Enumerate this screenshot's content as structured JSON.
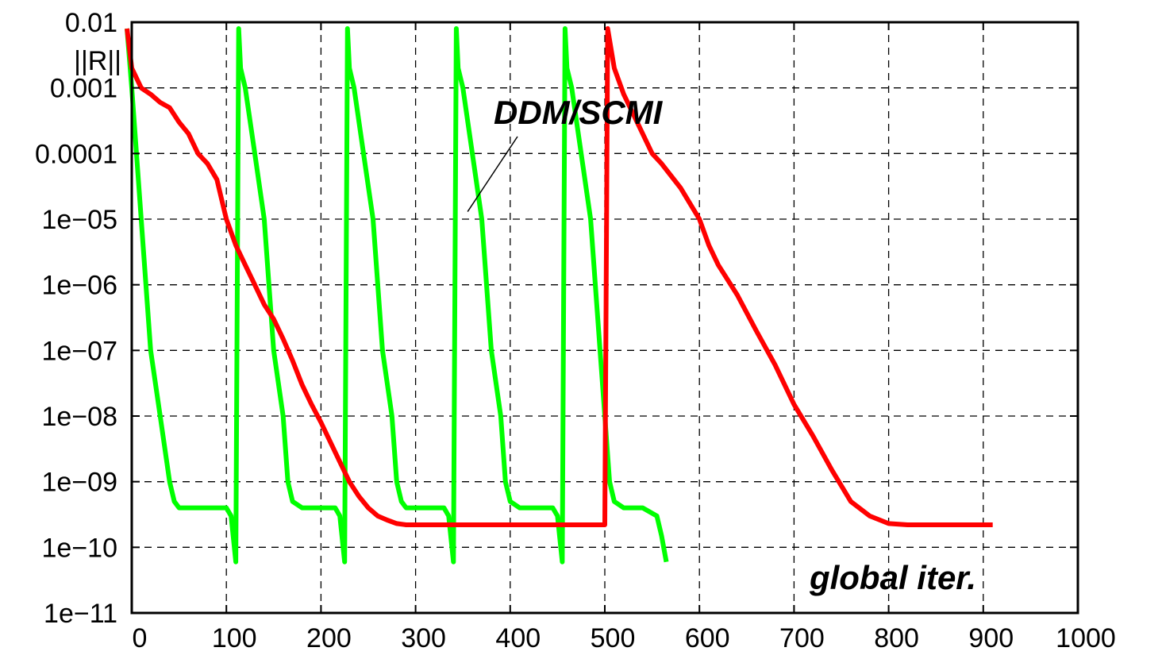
{
  "chart_data": {
    "type": "line",
    "title": "",
    "xlabel": "global iter.",
    "ylabel": "||R||",
    "xlim": [
      0,
      1000
    ],
    "ylim": [
      1e-11,
      0.01
    ],
    "yscale": "log",
    "grid": true,
    "x_ticks": [
      {
        "value": 0,
        "label": "0"
      },
      {
        "value": 100,
        "label": "100"
      },
      {
        "value": 200,
        "label": "200"
      },
      {
        "value": 300,
        "label": "300"
      },
      {
        "value": 400,
        "label": "400"
      },
      {
        "value": 500,
        "label": "500"
      },
      {
        "value": 600,
        "label": "600"
      },
      {
        "value": 700,
        "label": "700"
      },
      {
        "value": 800,
        "label": "800"
      },
      {
        "value": 900,
        "label": "900"
      },
      {
        "value": 1000,
        "label": "1000"
      }
    ],
    "y_ticks": [
      {
        "value": 0.01,
        "label": "0.01"
      },
      {
        "value": 0.001,
        "label": "0.001"
      },
      {
        "value": 0.0001,
        "label": "0.0001"
      },
      {
        "value": 1e-05,
        "label": "1e−05"
      },
      {
        "value": 1e-06,
        "label": "1e−06"
      },
      {
        "value": 1e-07,
        "label": "1e−07"
      },
      {
        "value": 1e-08,
        "label": "1e−08"
      },
      {
        "value": 1e-09,
        "label": "1e−09"
      },
      {
        "value": 1e-10,
        "label": "1e−10"
      },
      {
        "value": 1e-11,
        "label": "1e−11"
      }
    ],
    "annotations": [
      {
        "text": "DDM/SCMI",
        "target": {
          "x": 355,
          "y": 1.3e-05
        }
      }
    ],
    "series": [
      {
        "color": "#00ff00",
        "x": [
          -5,
          0,
          10,
          20,
          30,
          40,
          45,
          50,
          60,
          80,
          100,
          105,
          110,
          113,
          115,
          120,
          130,
          140,
          150,
          160,
          165,
          170,
          180,
          200,
          215,
          220,
          225,
          228,
          230,
          235,
          245,
          255,
          265,
          275,
          280,
          285,
          290,
          310,
          330,
          335,
          340,
          343,
          345,
          350,
          360,
          370,
          380,
          390,
          395,
          400,
          410,
          430,
          445,
          450,
          455,
          458,
          460,
          465,
          475,
          485,
          495,
          500,
          505,
          510,
          520,
          540,
          555,
          560,
          565
        ],
        "y": [
          0.008,
          0.001,
          1e-05,
          1e-07,
          1e-08,
          1e-09,
          5e-10,
          4e-10,
          4e-10,
          4e-10,
          4e-10,
          3e-10,
          6e-11,
          0.008,
          0.002,
          0.001,
          0.0001,
          1e-05,
          1e-07,
          1e-08,
          1e-09,
          5e-10,
          4e-10,
          4e-10,
          4e-10,
          3e-10,
          6e-11,
          0.008,
          0.002,
          0.001,
          0.0001,
          1e-05,
          1e-07,
          1e-08,
          1e-09,
          5e-10,
          4e-10,
          4e-10,
          4e-10,
          3e-10,
          6e-11,
          0.008,
          0.002,
          0.001,
          0.0001,
          1e-05,
          1e-07,
          1e-08,
          1e-09,
          5e-10,
          4e-10,
          4e-10,
          4e-10,
          3e-10,
          6e-11,
          0.008,
          0.002,
          0.001,
          0.0001,
          1e-05,
          1e-07,
          1e-08,
          1e-09,
          5e-10,
          4e-10,
          4e-10,
          3e-10,
          1.5e-10,
          6e-11
        ]
      },
      {
        "color": "#ff0000",
        "x": [
          -5,
          0,
          10,
          20,
          30,
          40,
          50,
          60,
          70,
          80,
          90,
          95,
          100,
          110,
          120,
          130,
          140,
          150,
          160,
          170,
          180,
          190,
          200,
          210,
          220,
          230,
          240,
          250,
          260,
          270,
          280,
          290,
          300,
          320,
          350,
          400,
          450,
          495,
          500,
          503,
          510,
          520,
          530,
          540,
          550,
          560,
          580,
          600,
          610,
          620,
          640,
          660,
          680,
          700,
          720,
          740,
          760,
          780,
          800,
          820,
          850,
          900,
          910
        ],
        "y": [
          0.008,
          0.002,
          0.001,
          0.0008,
          0.0006,
          0.0005,
          0.0003,
          0.0002,
          0.0001,
          7e-05,
          4e-05,
          2e-05,
          1e-05,
          4e-06,
          2e-06,
          1e-06,
          5e-07,
          3e-07,
          1.5e-07,
          7e-08,
          3e-08,
          1.5e-08,
          8e-09,
          4e-09,
          2e-09,
          1e-09,
          6e-10,
          4e-10,
          3e-10,
          2.6e-10,
          2.3e-10,
          2.2e-10,
          2.2e-10,
          2.2e-10,
          2.2e-10,
          2.2e-10,
          2.2e-10,
          2.2e-10,
          2.2e-10,
          0.008,
          0.002,
          0.0008,
          0.0004,
          0.0002,
          0.0001,
          7e-05,
          3e-05,
          1e-05,
          4e-06,
          2e-06,
          7e-07,
          2e-07,
          6e-08,
          1.5e-08,
          5e-09,
          1.5e-09,
          5e-10,
          3e-10,
          2.3e-10,
          2.2e-10,
          2.2e-10,
          2.2e-10,
          2.2e-10
        ]
      }
    ]
  }
}
